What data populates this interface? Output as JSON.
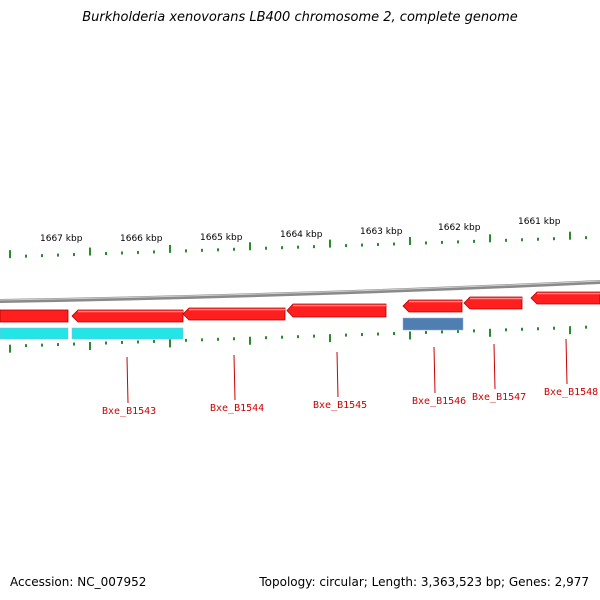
{
  "title": "Burkholderia xenovorans LB400 chromosome 2, complete genome",
  "footer": {
    "accession": "Accession: NC_007952",
    "stats": "Topology: circular; Length: 3,363,523 bp; Genes: 2,977"
  },
  "colors": {
    "backbone": "#888888",
    "cds": "#ff1f1f",
    "cds_edge": "#b00000",
    "rna": "#22e5e5",
    "other_feature": "#4f7fb0",
    "ticks": "#2b8a2b",
    "gene_label": "#cc0000"
  },
  "scale_labels": [
    "1667 kbp",
    "1666 kbp",
    "1665 kbp",
    "1664 kbp",
    "1663 kbp",
    "1662 kbp",
    "1661 kbp"
  ],
  "genes": [
    {
      "label": "Bxe_B1543"
    },
    {
      "label": "Bxe_B1544"
    },
    {
      "label": "Bxe_B1545"
    },
    {
      "label": "Bxe_B1546"
    },
    {
      "label": "Bxe_B1547"
    },
    {
      "label": "Bxe_B1548"
    }
  ]
}
